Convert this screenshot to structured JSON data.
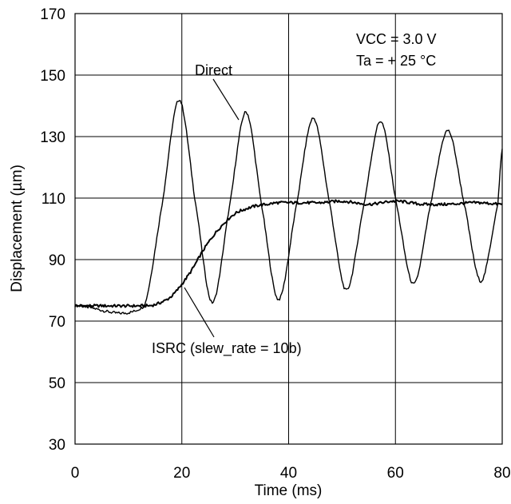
{
  "chart_data": {
    "type": "line",
    "title": "",
    "xlabel": "Time (ms)",
    "ylabel": "Displacement (µm)",
    "xlim": [
      0,
      80
    ],
    "ylim": [
      30,
      170
    ],
    "x_ticks": [
      0,
      20,
      40,
      60,
      80
    ],
    "y_ticks": [
      30,
      50,
      70,
      90,
      110,
      130,
      150,
      170
    ],
    "grid": true,
    "conditions": [
      "VCC = 3.0 V",
      "Ta = + 25 °C"
    ],
    "series": [
      {
        "name": "Direct",
        "x": [
          0,
          13,
          16.3,
          19.5,
          22.6,
          25.7,
          28.9,
          32,
          35,
          38.1,
          41.4,
          44.6,
          47.7,
          50.8,
          54.1,
          57.2,
          60.2,
          63.4,
          66.6,
          69.8,
          72.9,
          76,
          79.2,
          80
        ],
        "y": [
          75,
          75,
          108,
          142,
          108,
          76,
          107,
          138,
          107,
          77,
          107,
          136,
          108,
          80,
          108,
          135,
          108,
          82,
          108,
          132,
          108,
          83,
          108,
          126
        ],
        "color": "#000000"
      },
      {
        "name": "ISRC (slew_rate = 10b)",
        "x": [
          0,
          14,
          16,
          18,
          20,
          22,
          24,
          26,
          28,
          30,
          32,
          34,
          36,
          38,
          42,
          46,
          50,
          55,
          60,
          65,
          70,
          75,
          80
        ],
        "y": [
          75,
          75,
          76,
          78,
          82,
          87,
          93,
          98,
          102,
          105,
          106.5,
          107.5,
          108,
          108.5,
          108.5,
          108.5,
          109,
          108,
          109,
          108,
          108,
          108.5,
          108
        ],
        "color": "#000000"
      }
    ],
    "annotations": [
      {
        "label": "Direct",
        "series": 0
      },
      {
        "label": "ISRC (slew_rate = 10b)",
        "series": 1
      }
    ]
  }
}
